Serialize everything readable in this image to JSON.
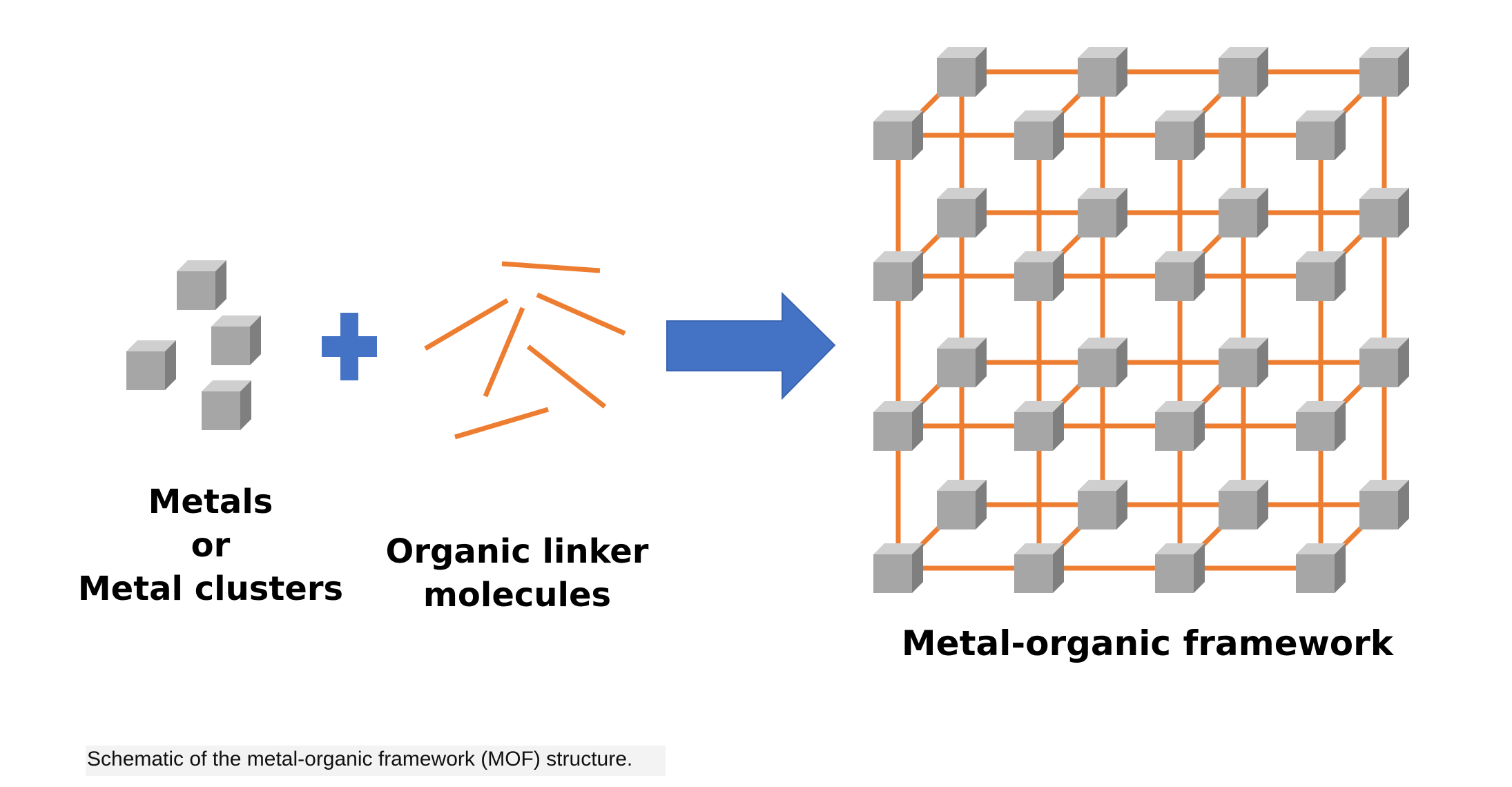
{
  "labels": {
    "metals_line1": "Metals",
    "metals_line2": "or",
    "metals_line3": "Metal clusters",
    "linker_line1": "Organic linker",
    "linker_line2": "molecules",
    "framework": "Metal-organic framework"
  },
  "caption": "Schematic of the metal-organic framework (MOF) structure.",
  "colors": {
    "linker": "#ed7d31",
    "plus": "#4472c4",
    "arrow": "#4472c4",
    "cube_front": "#a6a6a6",
    "cube_top": "#c8c8c8",
    "cube_side": "#7f7f7f"
  }
}
